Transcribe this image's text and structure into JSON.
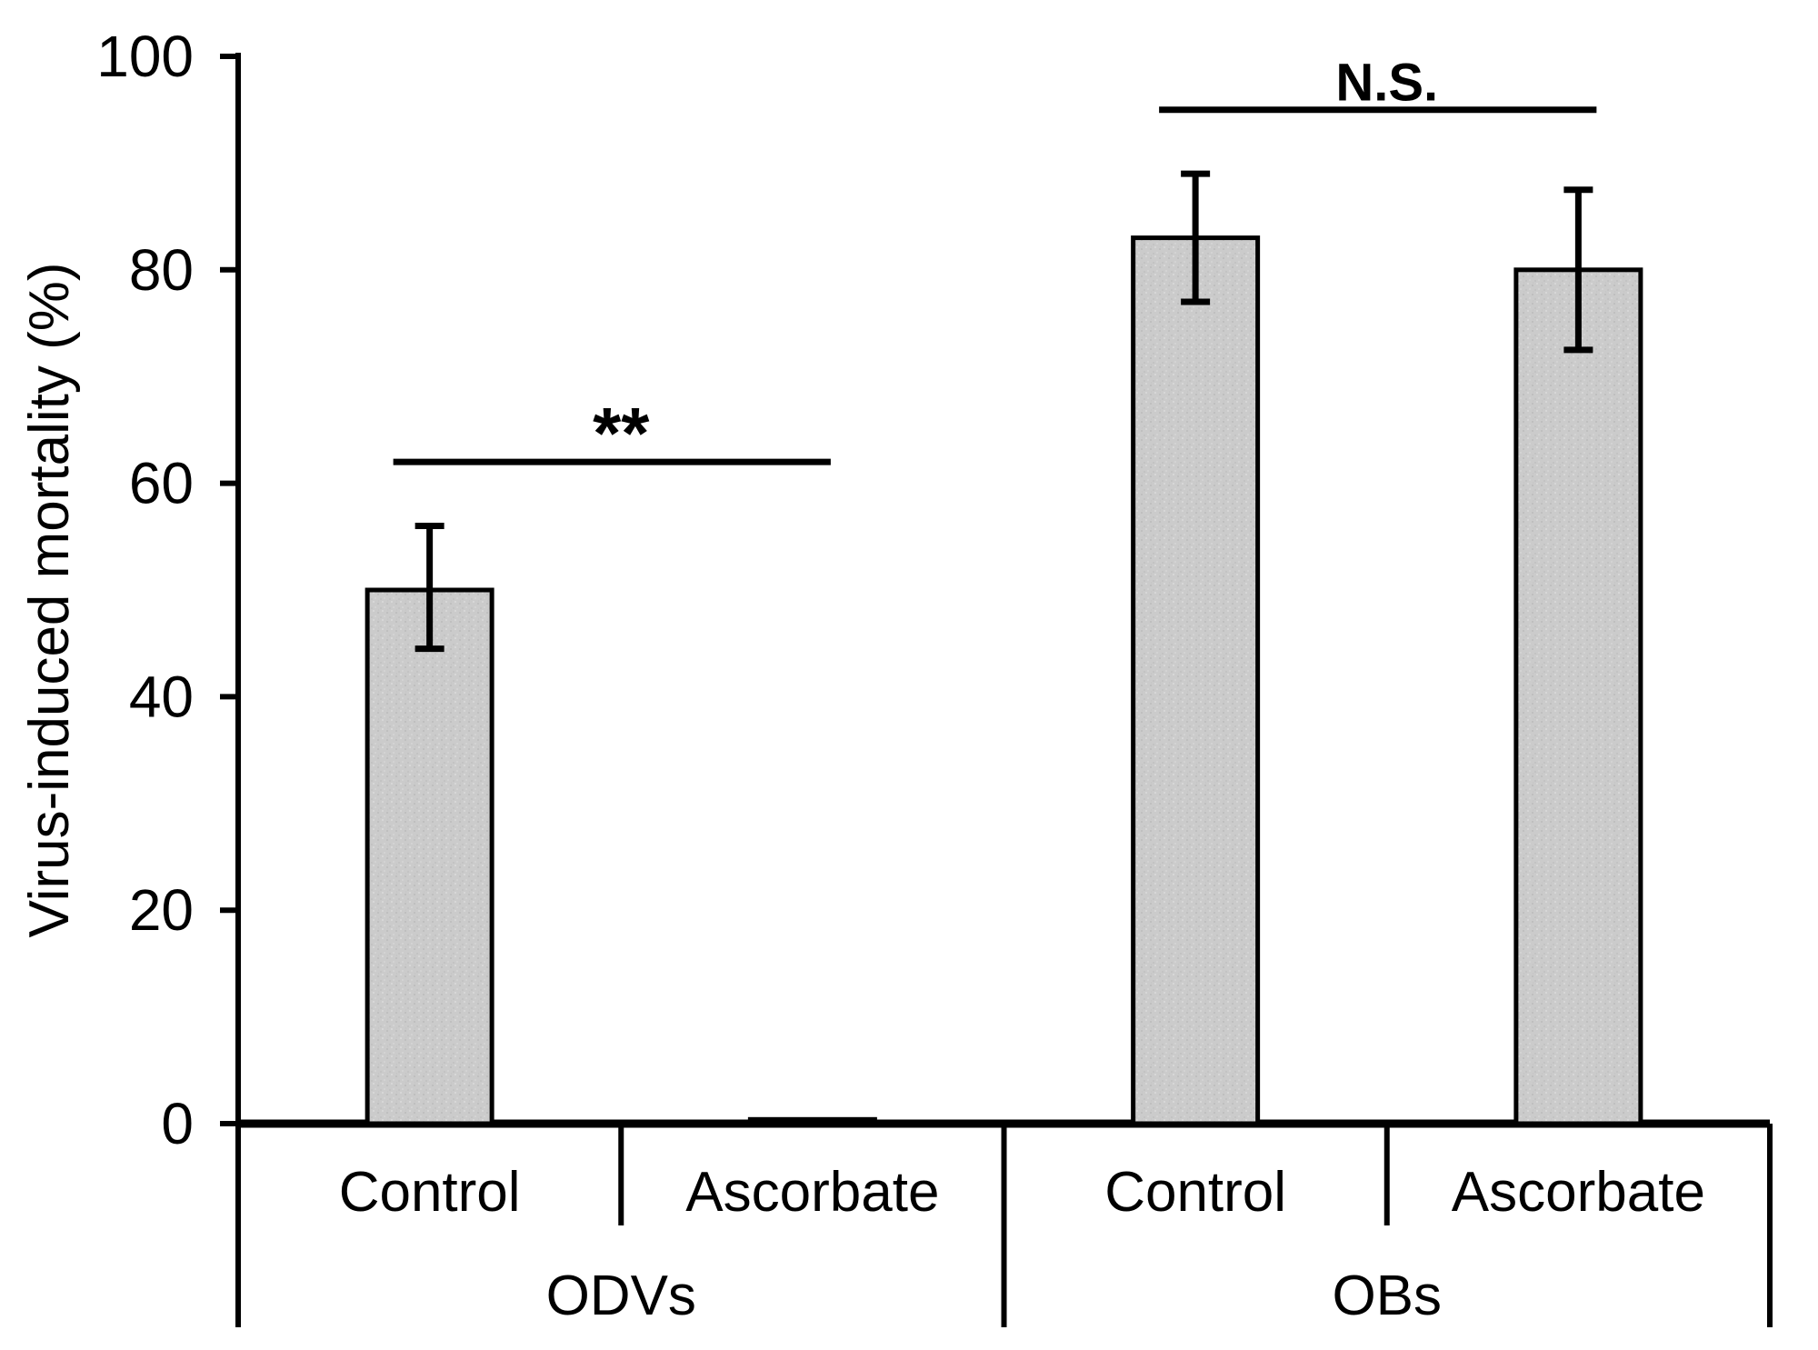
{
  "figure": {
    "background": "#ffffff",
    "ink_color": "#000000",
    "bar_fill_color": "#cbcbcb",
    "bar_stroke_color": "#000000"
  },
  "chart_data": {
    "type": "bar",
    "title": "",
    "ylabel": "Virus-induced mortality (%)",
    "xlabel": "",
    "ylim": [
      0,
      100
    ],
    "yticks": [
      0,
      20,
      40,
      60,
      80,
      100
    ],
    "grid": false,
    "legend_position": "none",
    "groups": [
      {
        "label": "ODVs",
        "categories": [
          "Control",
          "Ascorbate"
        ]
      },
      {
        "label": "OBs",
        "categories": [
          "Control",
          "Ascorbate"
        ]
      }
    ],
    "categories": [
      "Control",
      "Ascorbate",
      "Control",
      "Ascorbate"
    ],
    "series": [
      {
        "name": "Virus-induced mortality",
        "values": [
          50,
          0.4,
          83,
          80
        ],
        "error_bars": [
          {
            "lower": 44.5,
            "upper": 56
          },
          null,
          {
            "lower": 77,
            "upper": 89
          },
          {
            "lower": 72.5,
            "upper": 87.5
          }
        ]
      }
    ],
    "annotations": [
      {
        "label": "**",
        "bar_indices": [
          0,
          1
        ],
        "line_y": 62,
        "bold": true
      },
      {
        "label": "N.S.",
        "bar_indices": [
          2,
          3
        ],
        "line_y": 95,
        "bold": true
      }
    ]
  }
}
